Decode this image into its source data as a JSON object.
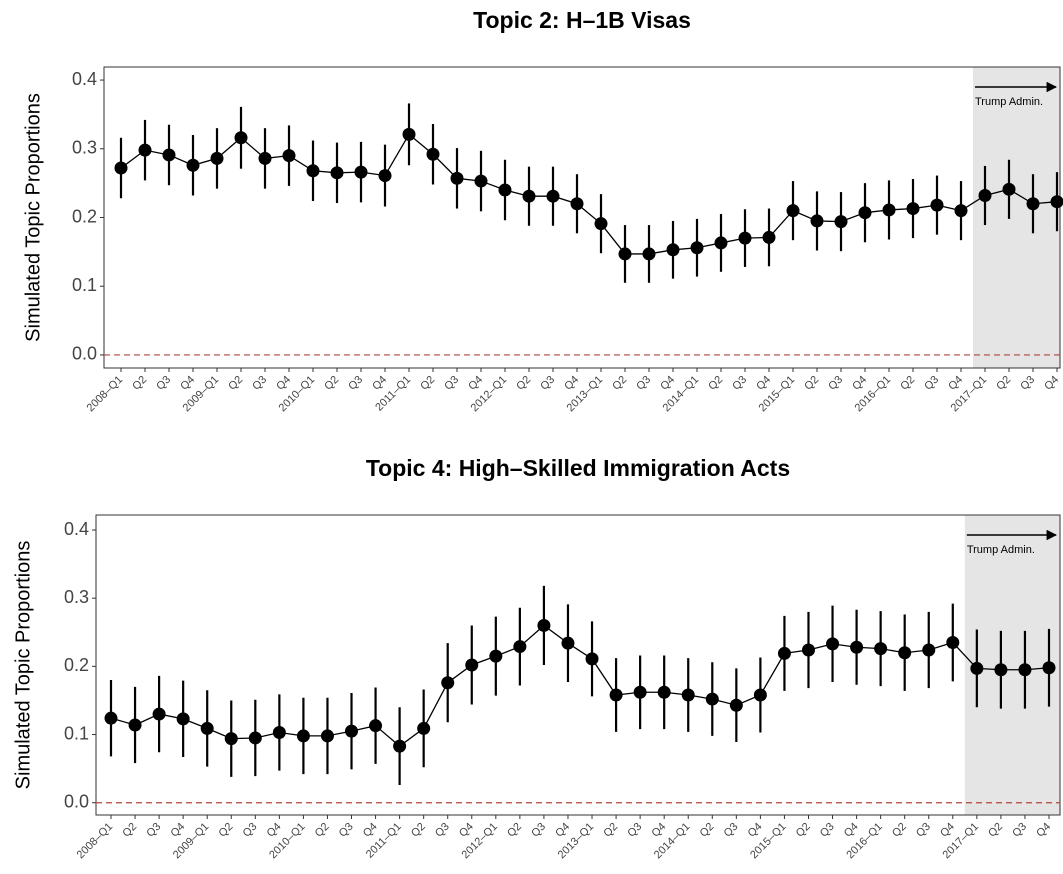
{
  "chart_data": [
    {
      "type": "line",
      "title": "Topic 2: H–1B Visas",
      "y_label": "Simulated Topic Proportions",
      "categories": [
        "2008–Q1",
        "Q2",
        "Q3",
        "Q4",
        "2009–Q1",
        "Q2",
        "Q3",
        "Q4",
        "2010–Q1",
        "Q2",
        "Q3",
        "Q4",
        "2011–Q1",
        "Q2",
        "Q3",
        "Q4",
        "2012–Q1",
        "Q2",
        "Q3",
        "Q4",
        "2013–Q1",
        "Q2",
        "Q3",
        "Q4",
        "2014–Q1",
        "Q2",
        "Q3",
        "Q4",
        "2015–Q1",
        "Q2",
        "Q3",
        "Q4",
        "2016–Q1",
        "Q2",
        "Q3",
        "Q4",
        "2017–Q1",
        "Q2",
        "Q3",
        "Q4"
      ],
      "values": [
        0.272,
        0.298,
        0.291,
        0.276,
        0.286,
        0.316,
        0.286,
        0.29,
        0.268,
        0.265,
        0.266,
        0.261,
        0.321,
        0.292,
        0.257,
        0.253,
        0.24,
        0.231,
        0.231,
        0.22,
        0.191,
        0.147,
        0.147,
        0.153,
        0.156,
        0.163,
        0.17,
        0.171,
        0.21,
        0.195,
        0.194,
        0.207,
        0.211,
        0.213,
        0.218,
        0.21,
        0.232,
        0.241,
        0.22,
        0.223
      ],
      "errors": [
        0.044,
        0.044,
        0.044,
        0.044,
        0.044,
        0.045,
        0.044,
        0.044,
        0.044,
        0.044,
        0.044,
        0.045,
        0.045,
        0.044,
        0.044,
        0.044,
        0.044,
        0.043,
        0.043,
        0.043,
        0.043,
        0.042,
        0.042,
        0.042,
        0.042,
        0.042,
        0.042,
        0.042,
        0.043,
        0.043,
        0.043,
        0.043,
        0.043,
        0.043,
        0.043,
        0.043,
        0.043,
        0.043,
        0.043,
        0.043
      ],
      "color": "#000000",
      "ylim": [
        -0.019,
        0.419
      ],
      "yticks": [
        {
          "value": 0,
          "label": "0.0"
        },
        0.1,
        0.2,
        0.3,
        0.4
      ],
      "hline": 0,
      "hline_color": "#b5453c",
      "highlight_start": "2017–Q1",
      "highlight_color": "#e5e5e5",
      "annotation": "Trump Admin."
    },
    {
      "type": "line",
      "title": "Topic 4: High–Skilled Immigration Acts",
      "y_label": "Simulated Topic Proportions",
      "categories": [
        "2008–Q1",
        "Q2",
        "Q3",
        "Q4",
        "2009–Q1",
        "Q2",
        "Q3",
        "Q4",
        "2010–Q1",
        "Q2",
        "Q3",
        "Q4",
        "2011–Q1",
        "Q2",
        "Q3",
        "Q4",
        "2012–Q1",
        "Q2",
        "Q3",
        "Q4",
        "2013–Q1",
        "Q2",
        "Q3",
        "Q4",
        "2014–Q1",
        "Q2",
        "Q3",
        "Q4",
        "2015–Q1",
        "Q2",
        "Q3",
        "Q4",
        "2016–Q1",
        "Q2",
        "Q3",
        "Q4",
        "2017–Q1",
        "Q2",
        "Q3",
        "Q4"
      ],
      "values": [
        0.124,
        0.114,
        0.13,
        0.123,
        0.109,
        0.094,
        0.095,
        0.103,
        0.098,
        0.098,
        0.105,
        0.113,
        0.083,
        0.109,
        0.176,
        0.202,
        0.215,
        0.229,
        0.26,
        0.234,
        0.211,
        0.158,
        0.162,
        0.162,
        0.158,
        0.152,
        0.143,
        0.158,
        0.219,
        0.224,
        0.233,
        0.228,
        0.226,
        0.22,
        0.224,
        0.235,
        0.197,
        0.195,
        0.195,
        0.198
      ],
      "errors": [
        0.056,
        0.056,
        0.056,
        0.056,
        0.056,
        0.056,
        0.056,
        0.056,
        0.056,
        0.056,
        0.056,
        0.056,
        0.057,
        0.057,
        0.058,
        0.058,
        0.058,
        0.057,
        0.058,
        0.057,
        0.055,
        0.054,
        0.054,
        0.054,
        0.054,
        0.054,
        0.054,
        0.055,
        0.055,
        0.056,
        0.056,
        0.055,
        0.055,
        0.056,
        0.056,
        0.057,
        0.057,
        0.057,
        0.057,
        0.057
      ],
      "color": "#000000",
      "ylim": [
        -0.018,
        0.422
      ],
      "yticks": [
        {
          "value": 0,
          "label": "0.0"
        },
        0.1,
        0.2,
        0.3,
        0.4
      ],
      "hline": 0,
      "hline_color": "#b5453c",
      "highlight_start": "2017–Q1",
      "highlight_color": "#e5e5e5",
      "annotation": "Trump Admin."
    }
  ]
}
